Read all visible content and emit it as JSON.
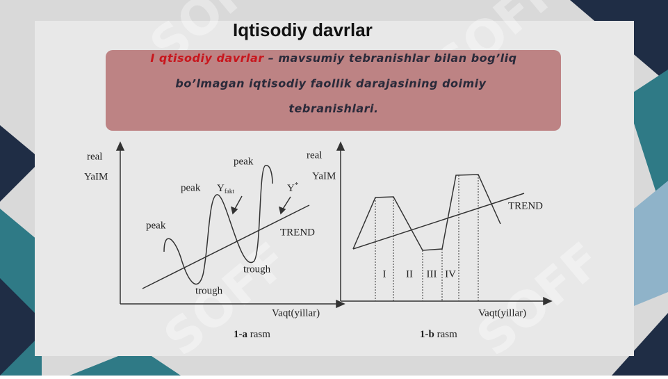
{
  "slide": {
    "title": "Iqtisodiy davrlar",
    "watermark": "SOFF",
    "definition": {
      "highlight": "I qtisodiy davrlar",
      "line1": "– mavsumiy tebranishlar bilan bog’liq",
      "line2": "bo’lmagan iqtisodiy faollik darajasining doimiy",
      "line3": "tebranishlari."
    },
    "figure_a": {
      "y_label_1": "real",
      "y_label_2": "YaIM",
      "peaks": [
        "peak",
        "peak",
        "peak"
      ],
      "troughs": [
        "trough",
        "trough"
      ],
      "y_fakt": {
        "symbol": "Y",
        "subscript": "fakt"
      },
      "y_star": {
        "symbol": "Y",
        "superscript": "*"
      },
      "trend": "TREND",
      "x_label": "Vaqt(yillar)",
      "caption": {
        "number": "1-a",
        "text": "rasm"
      }
    },
    "figure_b": {
      "y_label_1": "real",
      "y_label_2": "YaIM",
      "trend": "TREND",
      "phases": [
        "I",
        "II",
        "III",
        "IV"
      ],
      "x_label": "Vaqt(yillar)",
      "caption": {
        "number": "1-b",
        "text": "rasm"
      }
    }
  }
}
